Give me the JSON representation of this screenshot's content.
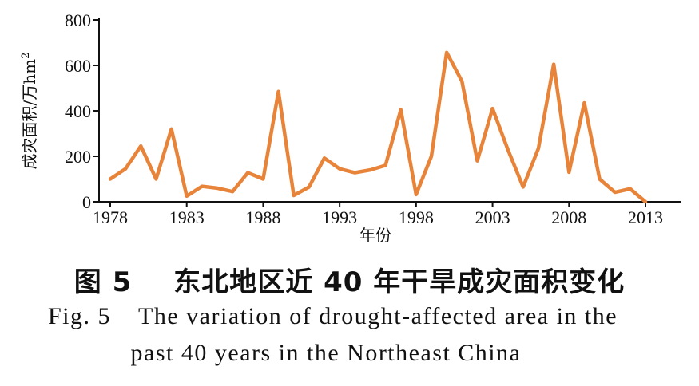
{
  "chart_data": {
    "type": "line",
    "x": [
      1978,
      1979,
      1980,
      1981,
      1982,
      1983,
      1984,
      1985,
      1986,
      1987,
      1988,
      1989,
      1990,
      1991,
      1992,
      1993,
      1994,
      1995,
      1996,
      1997,
      1998,
      1999,
      2000,
      2001,
      2002,
      2003,
      2004,
      2005,
      2006,
      2007,
      2008,
      2009,
      2010,
      2011,
      2012,
      2013
    ],
    "series": [
      {
        "values": [
          100,
          145,
          245,
          100,
          320,
          25,
          68,
          60,
          45,
          128,
          100,
          485,
          28,
          65,
          192,
          145,
          128,
          140,
          160,
          405,
          32,
          200,
          657,
          530,
          180,
          410,
          230,
          65,
          235,
          605,
          130,
          435,
          100,
          42,
          57,
          0
        ]
      }
    ],
    "xticks": [
      "1978",
      "1983",
      "1988",
      "1993",
      "1998",
      "2003",
      "2008",
      "2013"
    ],
    "yticks": [
      "0",
      "200",
      "400",
      "600",
      "800"
    ],
    "xlim": [
      1978,
      2013
    ],
    "ylim": [
      0,
      800
    ],
    "xlabel": "年份",
    "ylabel": "成灾面积/万hm",
    "ylabel_sup": "2",
    "grid": false,
    "line_color": "#e8843a"
  },
  "caption": {
    "cn_number": "图 5",
    "cn_title": "东北地区近 40 年干旱成灾面积变化",
    "en_number": "Fig. 5",
    "en_line1": "The variation of drought-affected area in the",
    "en_line2": "past 40 years in the Northeast China"
  }
}
